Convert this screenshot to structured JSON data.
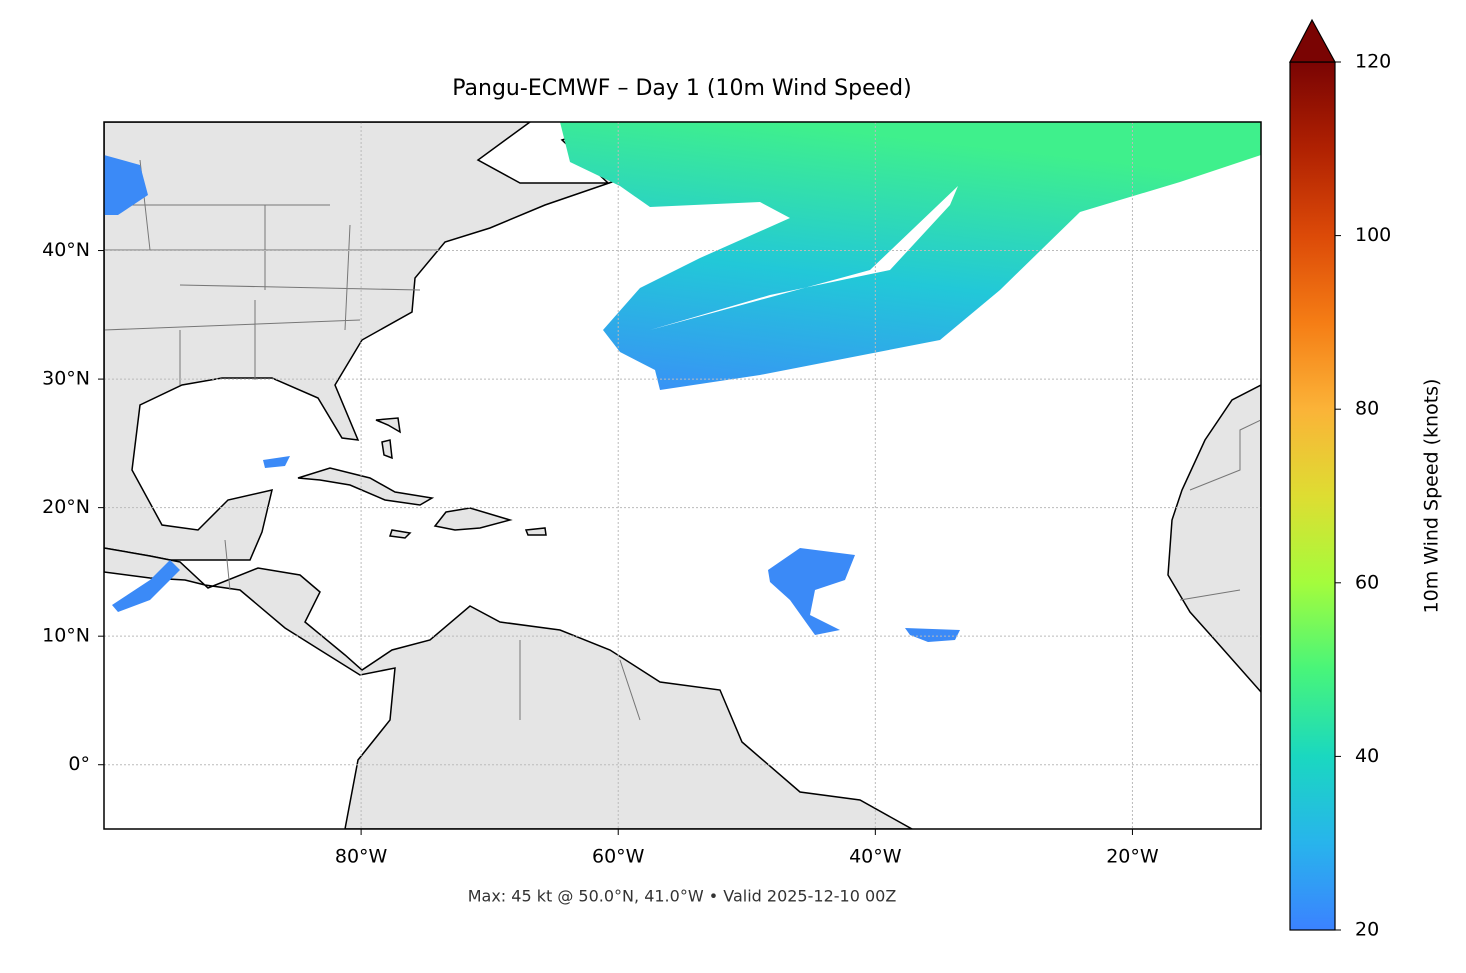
{
  "chart_data": {
    "type": "map",
    "title": "Pangu-ECMWF – Day 1 (10m Wind Speed)",
    "subtitle": "Max: 45 kt @ 50.0°N, 41.0°W • Valid 2025-12-10 00Z",
    "xlim": [
      -100,
      -10
    ],
    "ylim": [
      -5,
      50
    ],
    "xticks": [
      {
        "value": -80,
        "label": "80°W"
      },
      {
        "value": -60,
        "label": "60°W"
      },
      {
        "value": -40,
        "label": "40°W"
      },
      {
        "value": -20,
        "label": "20°W"
      }
    ],
    "yticks": [
      {
        "value": 0,
        "label": "0°"
      },
      {
        "value": 10,
        "label": "10°N"
      },
      {
        "value": 20,
        "label": "20°N"
      },
      {
        "value": 30,
        "label": "30°N"
      },
      {
        "value": 40,
        "label": "40°N"
      }
    ],
    "grid": true,
    "colorbar": {
      "label": "10m Wind Speed (knots)",
      "lim": [
        20,
        120
      ],
      "ticks": [
        20,
        40,
        60,
        80,
        100,
        120
      ]
    }
  }
}
